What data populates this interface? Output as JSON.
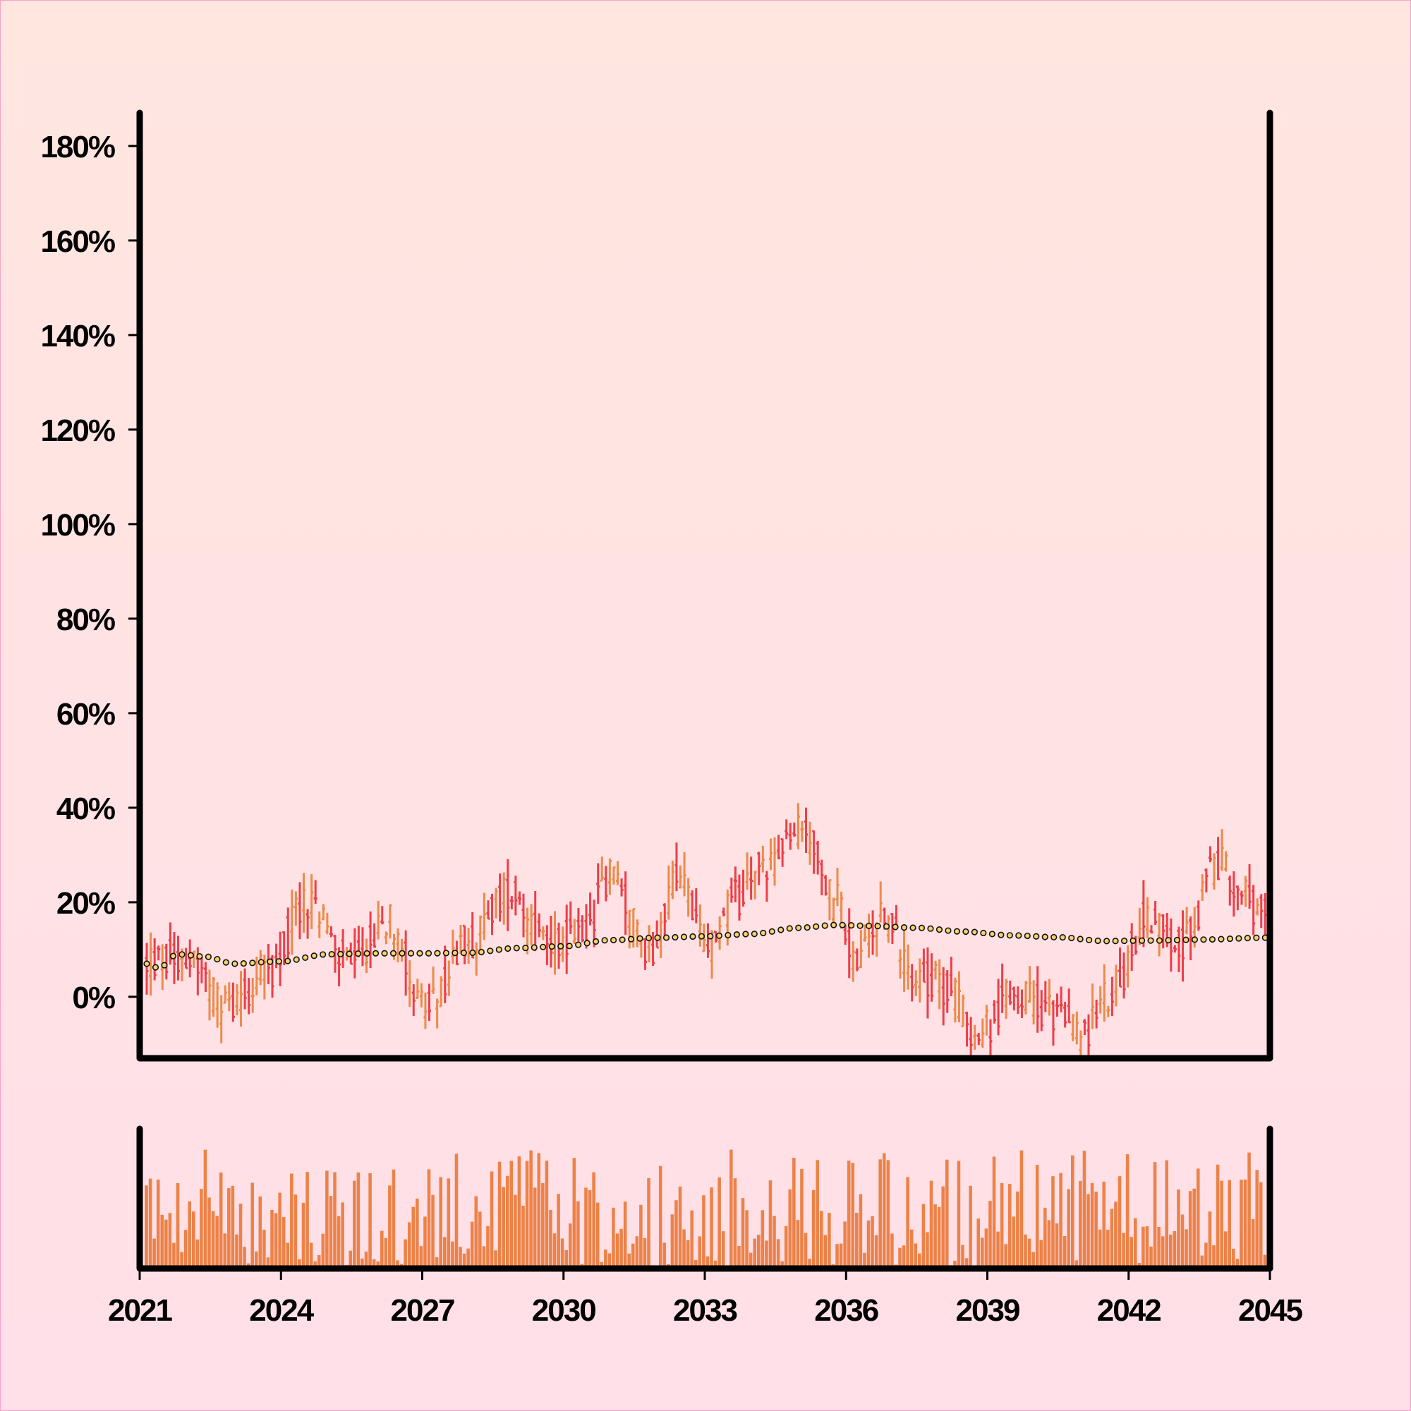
{
  "chart_data": {
    "type": "ohlc",
    "x_axis": {
      "ticks": [
        "2021",
        "2024",
        "2027",
        "2030",
        "2033",
        "2036",
        "2039",
        "2042",
        "2045"
      ],
      "range": [
        2021,
        2045
      ]
    },
    "y_axis": {
      "ticks": [
        "0%",
        "20%",
        "40%",
        "60%",
        "80%",
        "100%",
        "120%",
        "140%",
        "160%",
        "180%"
      ],
      "range": [
        -13,
        187
      ],
      "unit": "%"
    },
    "colors": {
      "up": "#ec8a4a",
      "down": "#ee3e48",
      "ma_fill": "#f7d26c",
      "ma_stroke": "#111111",
      "volume": "#ec8248",
      "axis": "#000000"
    },
    "anchors": [
      {
        "t": 2021.2,
        "v": 7
      },
      {
        "t": 2022.0,
        "v": 9
      },
      {
        "t": 2022.8,
        "v": -2
      },
      {
        "t": 2023.8,
        "v": 6
      },
      {
        "t": 2024.5,
        "v": 20
      },
      {
        "t": 2025.5,
        "v": 7
      },
      {
        "t": 2026.3,
        "v": 16
      },
      {
        "t": 2027.1,
        "v": -3
      },
      {
        "t": 2028.0,
        "v": 12
      },
      {
        "t": 2028.9,
        "v": 23
      },
      {
        "t": 2029.6,
        "v": 12
      },
      {
        "t": 2030.4,
        "v": 13
      },
      {
        "t": 2031.0,
        "v": 26
      },
      {
        "t": 2031.8,
        "v": 10
      },
      {
        "t": 2032.5,
        "v": 26
      },
      {
        "t": 2033.0,
        "v": 10
      },
      {
        "t": 2033.7,
        "v": 21
      },
      {
        "t": 2034.4,
        "v": 29
      },
      {
        "t": 2035.1,
        "v": 35
      },
      {
        "t": 2035.8,
        "v": 20
      },
      {
        "t": 2036.2,
        "v": 7
      },
      {
        "t": 2036.8,
        "v": 17
      },
      {
        "t": 2037.5,
        "v": 5
      },
      {
        "t": 2038.2,
        "v": 2
      },
      {
        "t": 2038.8,
        "v": -8
      },
      {
        "t": 2039.6,
        "v": 1
      },
      {
        "t": 2040.4,
        "v": -3
      },
      {
        "t": 2041.0,
        "v": -8
      },
      {
        "t": 2041.7,
        "v": 2
      },
      {
        "t": 2042.4,
        "v": 17
      },
      {
        "t": 2043.2,
        "v": 12
      },
      {
        "t": 2043.9,
        "v": 28
      },
      {
        "t": 2044.9,
        "v": 17
      }
    ],
    "moving_average": [
      {
        "t": 2021.2,
        "v": 7
      },
      {
        "t": 2021.4,
        "v": 6
      },
      {
        "t": 2021.8,
        "v": 9
      },
      {
        "t": 2022.4,
        "v": 8.5
      },
      {
        "t": 2023.0,
        "v": 7
      },
      {
        "t": 2024.0,
        "v": 7.5
      },
      {
        "t": 2025.0,
        "v": 9
      },
      {
        "t": 2026.0,
        "v": 9.2
      },
      {
        "t": 2027.0,
        "v": 9.2
      },
      {
        "t": 2028.0,
        "v": 9.3
      },
      {
        "t": 2029.0,
        "v": 10.3
      },
      {
        "t": 2030.0,
        "v": 10.7
      },
      {
        "t": 2031.0,
        "v": 12
      },
      {
        "t": 2032.0,
        "v": 12.5
      },
      {
        "t": 2033.0,
        "v": 12.8
      },
      {
        "t": 2034.0,
        "v": 13.3
      },
      {
        "t": 2035.0,
        "v": 14.6
      },
      {
        "t": 2035.8,
        "v": 15.2
      },
      {
        "t": 2036.5,
        "v": 15
      },
      {
        "t": 2037.5,
        "v": 14.6
      },
      {
        "t": 2038.5,
        "v": 13.8
      },
      {
        "t": 2039.5,
        "v": 13
      },
      {
        "t": 2040.5,
        "v": 12.6
      },
      {
        "t": 2041.5,
        "v": 11.8
      },
      {
        "t": 2042.5,
        "v": 11.9
      },
      {
        "t": 2043.5,
        "v": 12.1
      },
      {
        "t": 2044.9,
        "v": 12.5
      }
    ],
    "volume_shape": {
      "min": 0.05,
      "max": 0.95
    }
  }
}
